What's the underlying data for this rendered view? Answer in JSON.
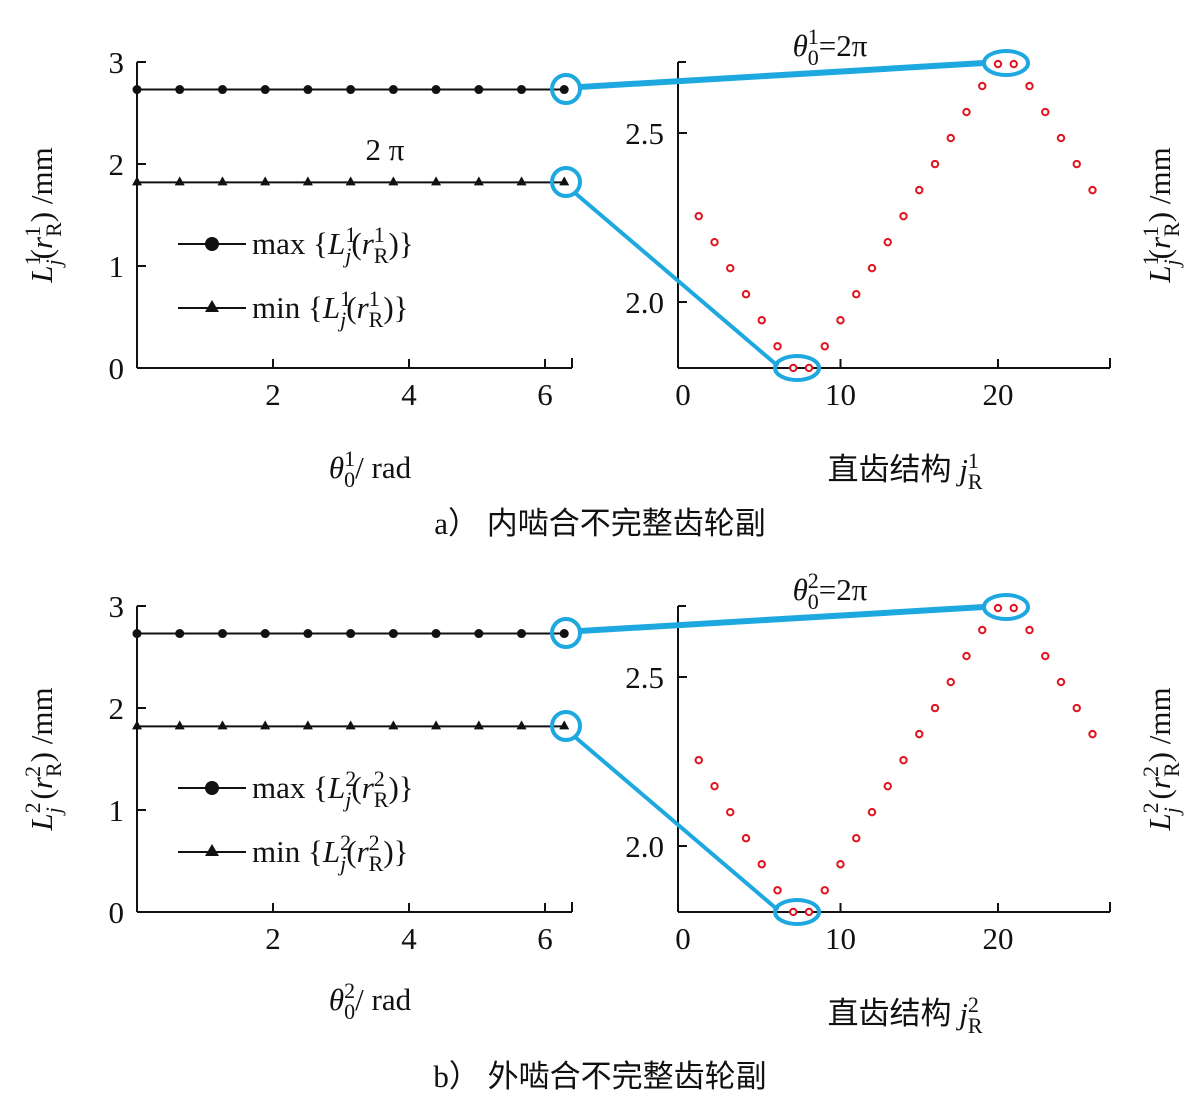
{
  "colors": {
    "axis": "#111111",
    "highlight": "#1ea8e0",
    "scatter": "#e0141e"
  },
  "chart_data": [
    {
      "panel": "a",
      "caption": "a）  内啮合不完整齿轮副",
      "left": {
        "type": "line",
        "ylabel": [
          {
            "t": "L",
            "s": "i"
          },
          {
            "t": "1",
            "s": "sup"
          },
          {
            "t": "j",
            "s": "subi"
          },
          {
            "t": "(",
            "s": ""
          },
          {
            "t": "r",
            "s": "i"
          },
          {
            "t": "1",
            "s": "sup"
          },
          {
            "t": "R",
            "s": "sub"
          },
          {
            "t": ") /mm",
            "s": ""
          }
        ],
        "xlabel": [
          {
            "t": "θ",
            "s": "i"
          },
          {
            "t": "1",
            "s": "sup"
          },
          {
            "t": "0",
            "s": "sub"
          },
          {
            "t": "/ rad",
            "s": ""
          }
        ],
        "xticks": [
          "2",
          "4",
          "6"
        ],
        "yticks": [
          "0",
          "1",
          "2",
          "3"
        ],
        "xlim": [
          0,
          6.4
        ],
        "ylim": [
          0,
          3
        ],
        "annotation": "2 π",
        "x": [
          0,
          0.628,
          1.257,
          1.885,
          2.513,
          3.142,
          3.77,
          4.398,
          5.027,
          5.655,
          6.283
        ],
        "series": [
          {
            "name": [
              {
                "t": "max {",
                "s": ""
              },
              {
                "t": "L",
                "s": "i"
              },
              {
                "t": "1",
                "s": "sup"
              },
              {
                "t": "j",
                "s": "subi"
              },
              {
                "t": "(",
                "s": ""
              },
              {
                "t": "r",
                "s": "i"
              },
              {
                "t": "1",
                "s": "sup"
              },
              {
                "t": "R",
                "s": "sub"
              },
              {
                "t": ")}",
                "s": ""
              }
            ],
            "marker": "circle",
            "values": [
              2.73,
              2.73,
              2.73,
              2.73,
              2.73,
              2.73,
              2.73,
              2.73,
              2.73,
              2.73,
              2.73
            ]
          },
          {
            "name": [
              {
                "t": "min {",
                "s": ""
              },
              {
                "t": "L",
                "s": "i"
              },
              {
                "t": "1",
                "s": "sup"
              },
              {
                "t": "j",
                "s": "subi"
              },
              {
                "t": "(",
                "s": ""
              },
              {
                "t": "r",
                "s": "i"
              },
              {
                "t": "1",
                "s": "sup"
              },
              {
                "t": "R",
                "s": "sub"
              },
              {
                "t": ")}",
                "s": ""
              }
            ],
            "marker": "triangle",
            "values": [
              1.82,
              1.82,
              1.82,
              1.82,
              1.82,
              1.82,
              1.82,
              1.82,
              1.82,
              1.82,
              1.82
            ]
          }
        ],
        "legend": "center-left"
      },
      "right": {
        "type": "scatter",
        "title": [
          {
            "t": "θ",
            "s": "i"
          },
          {
            "t": "1",
            "s": "sup"
          },
          {
            "t": "0",
            "s": "sub"
          },
          {
            "t": "=2π",
            "s": ""
          }
        ],
        "ylabel": [
          {
            "t": "L",
            "s": "i"
          },
          {
            "t": "1",
            "s": "sup"
          },
          {
            "t": "j",
            "s": "subi"
          },
          {
            "t": "(",
            "s": ""
          },
          {
            "t": "r",
            "s": "i"
          },
          {
            "t": "1",
            "s": "sup"
          },
          {
            "t": "R",
            "s": "sub"
          },
          {
            "t": ") /mm",
            "s": ""
          }
        ],
        "xlabel": [
          {
            "t": "直齿结构 ",
            "s": ""
          },
          {
            "t": "j",
            "s": "i"
          },
          {
            "t": "1",
            "s": "sup"
          },
          {
            "t": "R",
            "s": "sub"
          }
        ],
        "xticks": [
          "0",
          "10",
          "20"
        ],
        "yticks": [
          "2.0",
          "2.5"
        ],
        "xlim": [
          0,
          27
        ],
        "ylim": [
          1.8,
          2.71
        ],
        "x": [
          1,
          2,
          3,
          4,
          5,
          6,
          7,
          8,
          9,
          10,
          11,
          12,
          13,
          14,
          15,
          16,
          17,
          18,
          19,
          20,
          21,
          22,
          23,
          24,
          25,
          26
        ],
        "values": [
          2.254,
          2.177,
          2.1,
          2.023,
          1.946,
          1.869,
          1.805,
          1.805,
          1.869,
          1.946,
          2.023,
          2.1,
          2.177,
          2.254,
          2.331,
          2.408,
          2.485,
          2.562,
          2.639,
          2.704,
          2.704,
          2.639,
          2.562,
          2.485,
          2.408,
          2.331
        ]
      }
    },
    {
      "panel": "b",
      "caption": "b）  外啮合不完整齿轮副",
      "left": {
        "type": "line",
        "ylabel": [
          {
            "t": "L",
            "s": "i"
          },
          {
            "t": "2",
            "s": "sup"
          },
          {
            "t": "j",
            "s": "subi"
          },
          {
            "t": " (",
            "s": ""
          },
          {
            "t": "r",
            "s": "i"
          },
          {
            "t": "2",
            "s": "sup"
          },
          {
            "t": "R",
            "s": "sub"
          },
          {
            "t": ") /mm",
            "s": ""
          }
        ],
        "xlabel": [
          {
            "t": "θ",
            "s": "i"
          },
          {
            "t": "2",
            "s": "sup"
          },
          {
            "t": "0",
            "s": "sub"
          },
          {
            "t": "/ rad",
            "s": ""
          }
        ],
        "xticks": [
          "2",
          "4",
          "6"
        ],
        "yticks": [
          "0",
          "1",
          "2",
          "3"
        ],
        "xlim": [
          0,
          6.4
        ],
        "ylim": [
          0,
          3
        ],
        "x": [
          0,
          0.628,
          1.257,
          1.885,
          2.513,
          3.142,
          3.77,
          4.398,
          5.027,
          5.655,
          6.283
        ],
        "series": [
          {
            "name": [
              {
                "t": "max {",
                "s": ""
              },
              {
                "t": "L",
                "s": "i"
              },
              {
                "t": "2",
                "s": "sup"
              },
              {
                "t": "j",
                "s": "subi"
              },
              {
                "t": "(",
                "s": ""
              },
              {
                "t": "r",
                "s": "i"
              },
              {
                "t": "2",
                "s": "sup"
              },
              {
                "t": "R",
                "s": "sub"
              },
              {
                "t": ")}",
                "s": ""
              }
            ],
            "marker": "circle",
            "values": [
              2.73,
              2.73,
              2.73,
              2.73,
              2.73,
              2.73,
              2.73,
              2.73,
              2.73,
              2.73,
              2.73
            ]
          },
          {
            "name": [
              {
                "t": "min {",
                "s": ""
              },
              {
                "t": "L",
                "s": "i"
              },
              {
                "t": "2",
                "s": "sup"
              },
              {
                "t": "j",
                "s": "subi"
              },
              {
                "t": "(",
                "s": ""
              },
              {
                "t": "r",
                "s": "i"
              },
              {
                "t": "2",
                "s": "sup"
              },
              {
                "t": "R",
                "s": "sub"
              },
              {
                "t": ")}",
                "s": ""
              }
            ],
            "marker": "triangle",
            "values": [
              1.82,
              1.82,
              1.82,
              1.82,
              1.82,
              1.82,
              1.82,
              1.82,
              1.82,
              1.82,
              1.82
            ]
          }
        ],
        "legend": "center-left"
      },
      "right": {
        "type": "scatter",
        "title": [
          {
            "t": "θ",
            "s": "i"
          },
          {
            "t": "2",
            "s": "sup"
          },
          {
            "t": "0",
            "s": "sub"
          },
          {
            "t": "=2π",
            "s": ""
          }
        ],
        "ylabel": [
          {
            "t": "L",
            "s": "i"
          },
          {
            "t": "2",
            "s": "sup"
          },
          {
            "t": "j",
            "s": "subi"
          },
          {
            "t": " (",
            "s": ""
          },
          {
            "t": "r",
            "s": "i"
          },
          {
            "t": "2",
            "s": "sup"
          },
          {
            "t": "R",
            "s": "sub"
          },
          {
            "t": ") /mm",
            "s": ""
          }
        ],
        "xlabel": [
          {
            "t": "直齿结构 ",
            "s": ""
          },
          {
            "t": "j",
            "s": "i"
          },
          {
            "t": "2",
            "s": "sup"
          },
          {
            "t": "R",
            "s": "sub"
          }
        ],
        "xticks": [
          "0",
          "10",
          "20"
        ],
        "yticks": [
          "2.0",
          "2.5"
        ],
        "xlim": [
          0,
          27
        ],
        "ylim": [
          1.8,
          2.71
        ],
        "x": [
          1,
          2,
          3,
          4,
          5,
          6,
          7,
          8,
          9,
          10,
          11,
          12,
          13,
          14,
          15,
          16,
          17,
          18,
          19,
          20,
          21,
          22,
          23,
          24,
          25,
          26
        ],
        "values": [
          2.254,
          2.177,
          2.1,
          2.023,
          1.946,
          1.869,
          1.805,
          1.805,
          1.869,
          1.946,
          2.023,
          2.1,
          2.177,
          2.254,
          2.331,
          2.408,
          2.485,
          2.562,
          2.639,
          2.704,
          2.704,
          2.639,
          2.562,
          2.485,
          2.408,
          2.331
        ]
      }
    }
  ]
}
